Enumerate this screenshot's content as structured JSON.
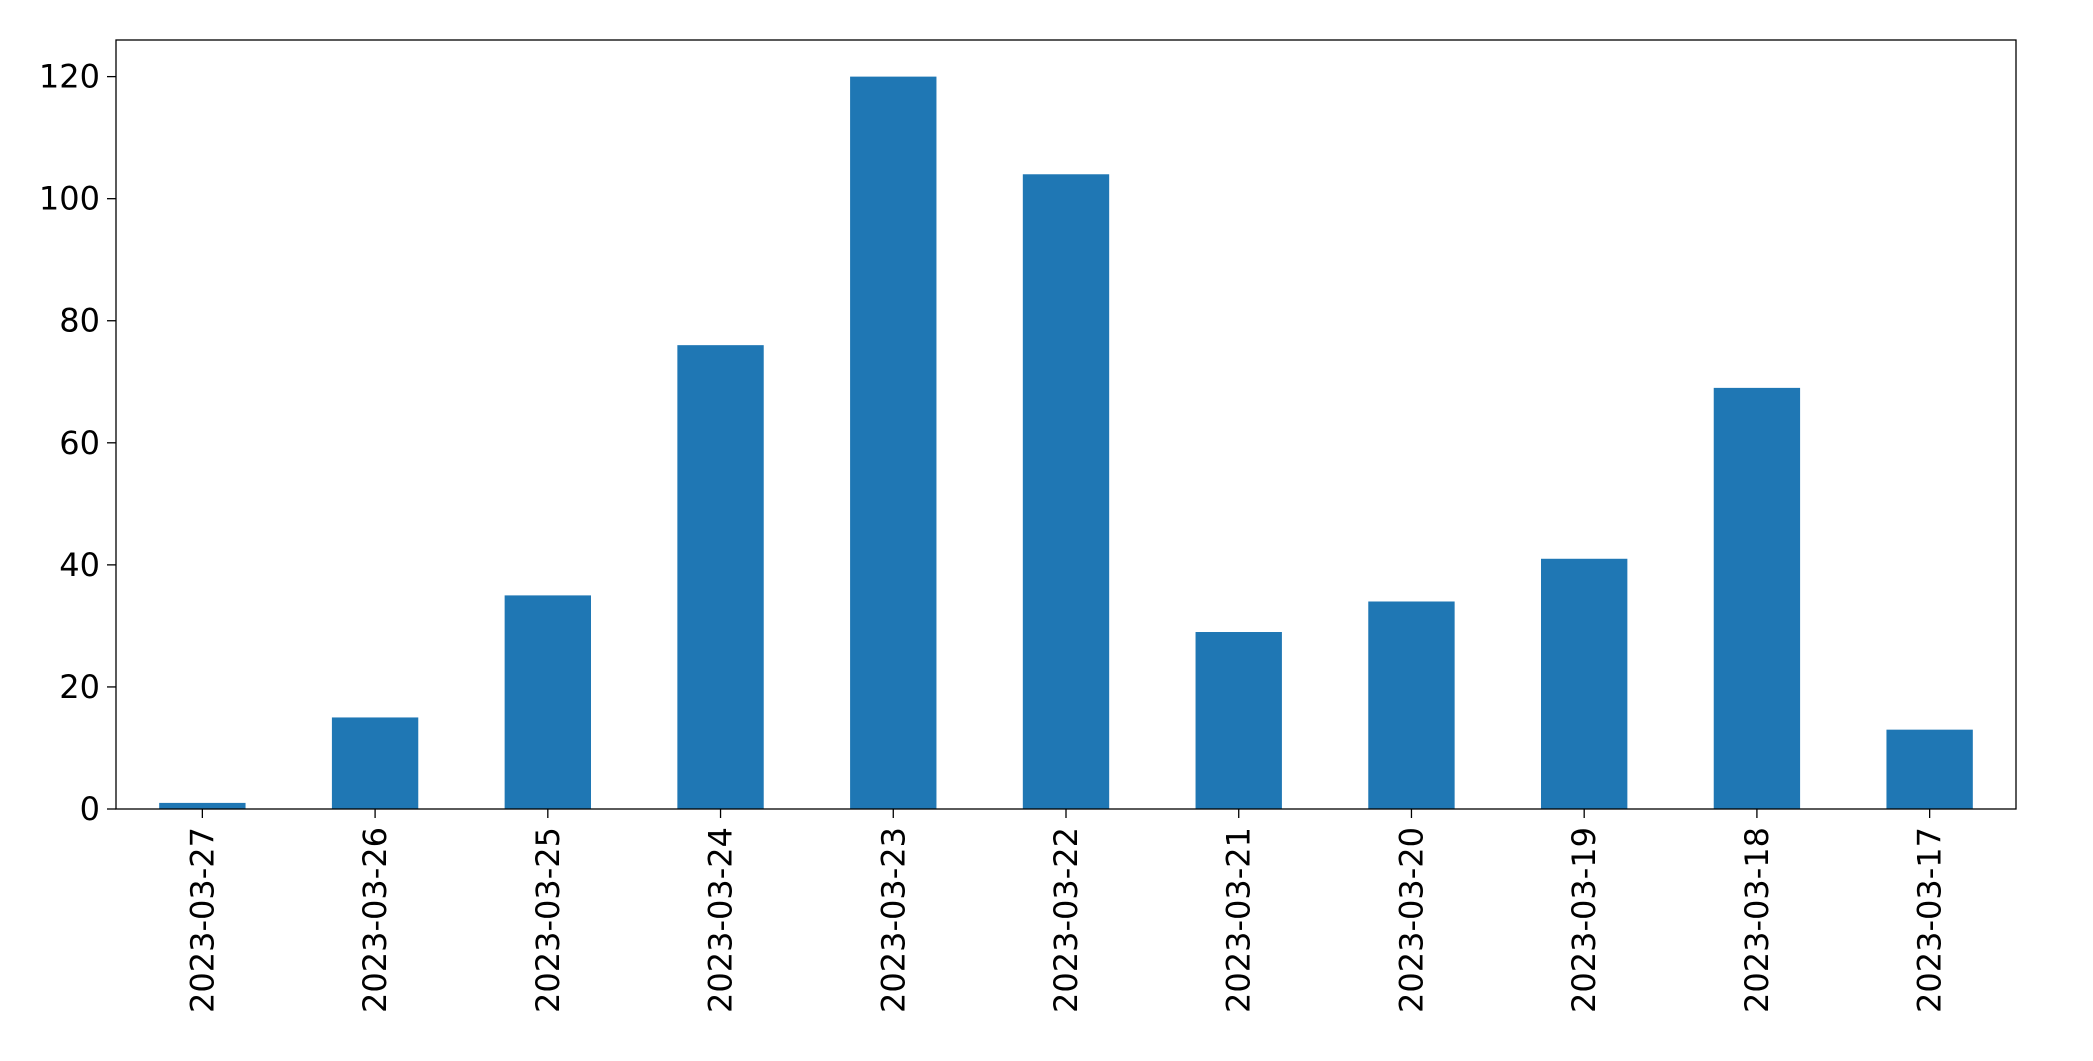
{
  "chart_data": {
    "type": "bar",
    "categories": [
      "2023-03-27",
      "2023-03-26",
      "2023-03-25",
      "2023-03-24",
      "2023-03-23",
      "2023-03-22",
      "2023-03-21",
      "2023-03-20",
      "2023-03-19",
      "2023-03-18",
      "2023-03-17"
    ],
    "values": [
      1,
      15,
      35,
      76,
      120,
      104,
      29,
      34,
      41,
      69,
      13
    ],
    "color": "#1f77b4",
    "ylim": [
      0,
      126
    ],
    "yticks": [
      0,
      20,
      40,
      60,
      80,
      100,
      120
    ],
    "grid": false
  }
}
